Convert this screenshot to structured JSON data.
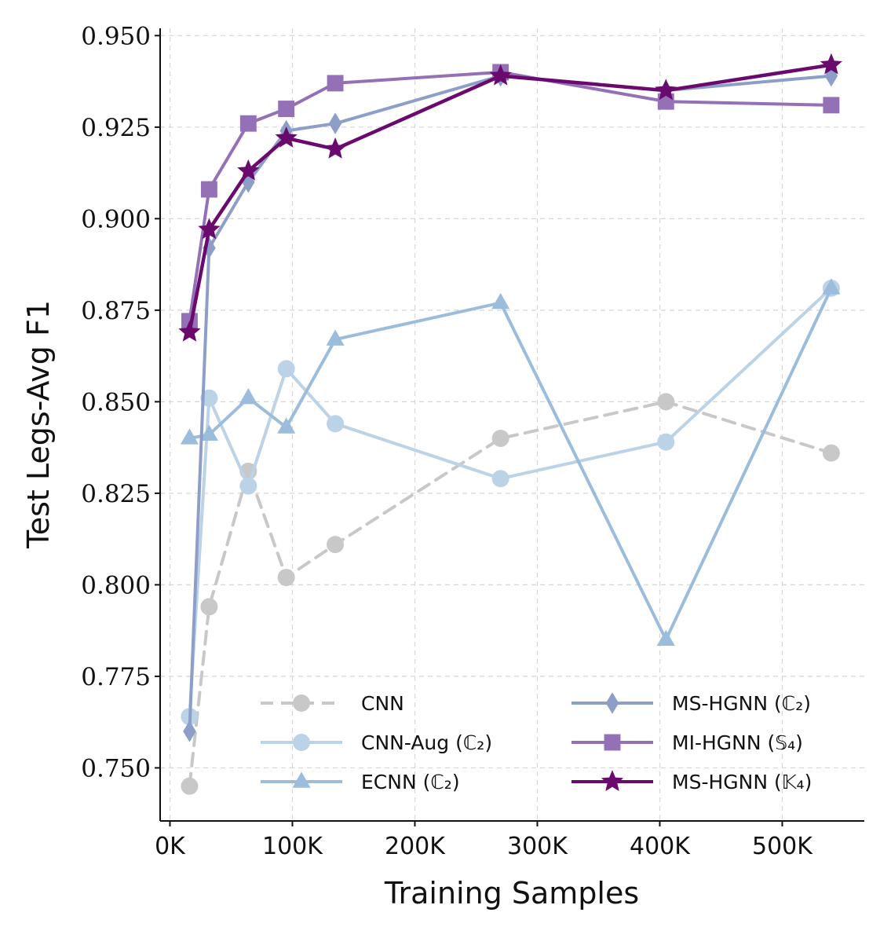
{
  "chart_data": {
    "type": "line",
    "title": "",
    "xlabel": "Training Samples",
    "ylabel": "Test Legs-Avg F1",
    "xlim": [
      -8000,
      567000
    ],
    "ylim": [
      0.7355,
      0.952
    ],
    "x_ticks": [
      0,
      100000,
      200000,
      300000,
      400000,
      500000
    ],
    "x_tick_labels": [
      "0K",
      "100K",
      "200K",
      "300K",
      "400K",
      "500K"
    ],
    "y_ticks": [
      0.75,
      0.775,
      0.8,
      0.825,
      0.85,
      0.875,
      0.9,
      0.925,
      0.95
    ],
    "y_tick_labels": [
      "0.750",
      "0.775",
      "0.800",
      "0.825",
      "0.850",
      "0.875",
      "0.900",
      "0.925",
      "0.950"
    ],
    "grid": true,
    "legend_position": "bottom-right",
    "x": [
      16000,
      32000,
      64000,
      95000,
      135000,
      270000,
      405000,
      540000
    ],
    "series": [
      {
        "name": "CNN",
        "color": "#c8c8c8",
        "marker": "circle",
        "dashed": true,
        "values": [
          0.745,
          0.794,
          0.831,
          0.802,
          0.811,
          0.84,
          0.85,
          0.836
        ]
      },
      {
        "name": "CNN-Aug (ℂ₂)",
        "color": "#bcd2e6",
        "marker": "circle",
        "dashed": false,
        "values": [
          0.764,
          0.851,
          0.827,
          0.859,
          0.844,
          0.829,
          0.839,
          0.881
        ]
      },
      {
        "name": "ECNN (ℂ₂)",
        "color": "#9cbcdc",
        "marker": "triangle",
        "dashed": false,
        "values": [
          0.84,
          0.841,
          0.851,
          0.843,
          0.867,
          0.877,
          0.785,
          0.881
        ]
      },
      {
        "name": "MS-HGNN (ℂ₂)",
        "color": "#8d9ec9",
        "marker": "diamond",
        "dashed": false,
        "values": [
          0.76,
          0.892,
          0.91,
          0.924,
          0.926,
          0.939,
          0.935,
          0.939
        ]
      },
      {
        "name": "MI-HGNN (𝕊₄)",
        "color": "#9470b6",
        "marker": "square",
        "dashed": false,
        "values": [
          0.872,
          0.908,
          0.926,
          0.93,
          0.937,
          0.94,
          0.932,
          0.931
        ]
      },
      {
        "name": "MS-HGNN (𝕂₄)",
        "color": "#6a0a6e",
        "marker": "star",
        "dashed": false,
        "values": [
          0.869,
          0.897,
          0.913,
          0.922,
          0.919,
          0.939,
          0.935,
          0.942
        ]
      }
    ]
  }
}
